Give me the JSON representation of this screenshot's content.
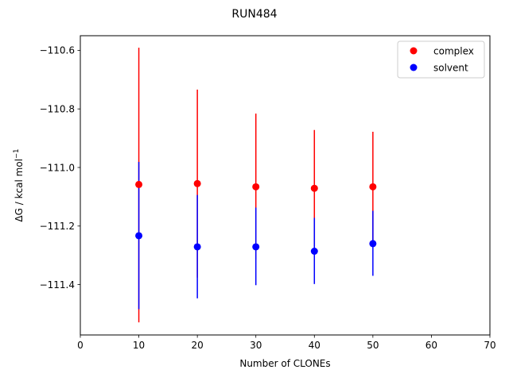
{
  "chart_data": {
    "type": "scatter",
    "title": "RUN484",
    "xlabel": "Number of CLONEs",
    "ylabel_main": "ΔG / kcal mol",
    "ylabel_sup": "−1",
    "xlim": [
      0,
      70
    ],
    "ylim": [
      -111.572,
      -110.55
    ],
    "xticks": [
      0,
      10,
      20,
      30,
      40,
      50,
      60,
      70
    ],
    "xtick_labels": [
      "0",
      "10",
      "20",
      "30",
      "40",
      "50",
      "60",
      "70"
    ],
    "yticks": [
      -111.4,
      -111.2,
      -111.0,
      -110.8,
      -110.6
    ],
    "ytick_labels": [
      "−111.4",
      "−111.2",
      "−111.0",
      "−110.8",
      "−110.6"
    ],
    "grid": false,
    "legend_position": "top-right",
    "series": [
      {
        "name": "complex",
        "color": "#ff0000",
        "x": [
          10,
          20,
          30,
          40,
          50
        ],
        "y": [
          -111.058,
          -111.055,
          -111.066,
          -111.071,
          -111.066
        ],
        "err_low": [
          -111.529,
          -111.376,
          -111.314,
          -111.27,
          -111.25
        ],
        "err_high": [
          -110.591,
          -110.734,
          -110.816,
          -110.872,
          -110.878
        ]
      },
      {
        "name": "solvent",
        "color": "#0000ff",
        "x": [
          10,
          20,
          30,
          40,
          50
        ],
        "y": [
          -111.233,
          -111.271,
          -111.271,
          -111.286,
          -111.26
        ],
        "err_low": [
          -111.484,
          -111.447,
          -111.402,
          -111.398,
          -111.37
        ],
        "err_high": [
          -110.981,
          -111.094,
          -111.137,
          -111.172,
          -111.148
        ]
      }
    ]
  }
}
